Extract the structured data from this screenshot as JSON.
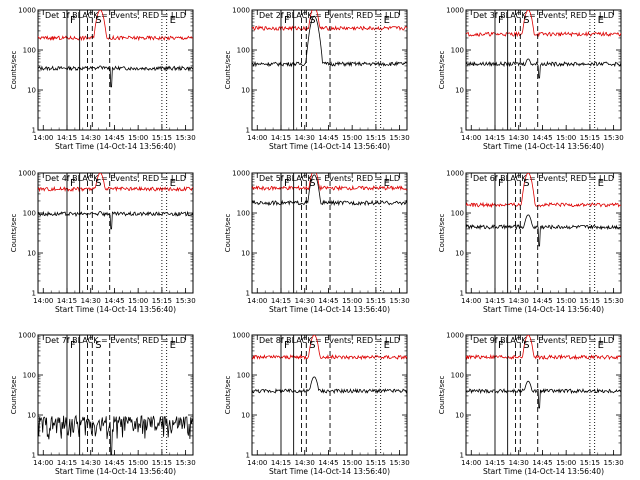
{
  "colors": {
    "events": "#000000",
    "lld": "#dd0000",
    "axes": "#000000"
  },
  "chart_data": [
    {
      "type": "line",
      "title": "Det 1f BLACK = Events, RED = LLD",
      "xlabel": "Start Time (14-Oct-14 13:56:40)",
      "ylabel": "Counts/sec",
      "y_scale": "log",
      "ylim": [
        1,
        1000
      ],
      "x_ticks": [
        "14:00",
        "14:15",
        "14:30",
        "14:45",
        "15:00",
        "15:15",
        "15:30"
      ],
      "y_ticks": [
        "1",
        "10",
        "100",
        "1000"
      ],
      "markers": [
        {
          "time": "14:15",
          "label": "F",
          "style": "solid"
        },
        {
          "time": "14:23",
          "label": "",
          "style": "solid"
        },
        {
          "time": "14:28",
          "label": "",
          "style": "dashed"
        },
        {
          "time": "14:31",
          "label": "S",
          "style": "dashed"
        },
        {
          "time": "14:42",
          "label": "",
          "style": "dashed"
        },
        {
          "time": "15:15",
          "label": "",
          "style": "dotted"
        },
        {
          "time": "15:18",
          "label": "E",
          "style": "dotted"
        }
      ],
      "series": [
        {
          "name": "Events",
          "color": "#000000",
          "baseline": 35,
          "peak_time": "14:36",
          "peak_value": 40,
          "dip_time": "14:43",
          "dip_value": 12
        },
        {
          "name": "LLD",
          "color": "#dd0000",
          "baseline": 200,
          "peak_time": "14:36",
          "peak_value": 1000,
          "dip_time": "",
          "dip_value": 0
        }
      ]
    },
    {
      "type": "line",
      "title": "Det 2f BLACK = Events, RED = LLD",
      "xlabel": "Start Time (14-Oct-14 13:56:40)",
      "ylabel": "Counts/sec",
      "y_scale": "log",
      "ylim": [
        1,
        1000
      ],
      "x_ticks": [
        "14:00",
        "14:15",
        "14:30",
        "14:45",
        "15:00",
        "15:15",
        "15:30"
      ],
      "y_ticks": [
        "1",
        "10",
        "100",
        "1000"
      ],
      "markers": [
        {
          "time": "14:15",
          "label": "F",
          "style": "solid"
        },
        {
          "time": "14:23",
          "label": "",
          "style": "solid"
        },
        {
          "time": "14:28",
          "label": "",
          "style": "dashed"
        },
        {
          "time": "14:31",
          "label": "S",
          "style": "dashed"
        },
        {
          "time": "14:46",
          "label": "",
          "style": "dashed"
        },
        {
          "time": "15:15",
          "label": "",
          "style": "dotted"
        },
        {
          "time": "15:18",
          "label": "E",
          "style": "dotted"
        }
      ],
      "series": [
        {
          "name": "Events",
          "color": "#000000",
          "baseline": 45,
          "peak_time": "14:36",
          "peak_value": 700,
          "dip_time": "",
          "dip_value": 0
        },
        {
          "name": "LLD",
          "color": "#dd0000",
          "baseline": 350,
          "peak_time": "14:36",
          "peak_value": 1200,
          "dip_time": "",
          "dip_value": 0
        }
      ]
    },
    {
      "type": "line",
      "title": "Det 3f BLACK = Events, RED = LLD",
      "xlabel": "Start Time (14-Oct-14 13:56:40)",
      "ylabel": "Counts/sec",
      "y_scale": "log",
      "ylim": [
        1,
        1000
      ],
      "x_ticks": [
        "14:00",
        "14:15",
        "14:30",
        "14:45",
        "15:00",
        "15:15",
        "15:30"
      ],
      "y_ticks": [
        "1",
        "10",
        "100",
        "1000"
      ],
      "markers": [
        {
          "time": "14:15",
          "label": "F",
          "style": "solid"
        },
        {
          "time": "14:23",
          "label": "",
          "style": "solid"
        },
        {
          "time": "14:28",
          "label": "",
          "style": "dashed"
        },
        {
          "time": "14:31",
          "label": "S",
          "style": "dashed"
        },
        {
          "time": "14:42",
          "label": "",
          "style": "dashed"
        },
        {
          "time": "15:15",
          "label": "",
          "style": "dotted"
        },
        {
          "time": "15:18",
          "label": "E",
          "style": "dotted"
        }
      ],
      "series": [
        {
          "name": "Events",
          "color": "#000000",
          "baseline": 45,
          "peak_time": "14:36",
          "peak_value": 60,
          "dip_time": "14:43",
          "dip_value": 20
        },
        {
          "name": "LLD",
          "color": "#dd0000",
          "baseline": 250,
          "peak_time": "14:36",
          "peak_value": 1000,
          "dip_time": "",
          "dip_value": 0
        }
      ]
    },
    {
      "type": "line",
      "title": "Det 4f BLACK = Events, RED = LLD",
      "xlabel": "Start Time (14-Oct-14 13:56:40)",
      "ylabel": "Counts/sec",
      "y_scale": "log",
      "ylim": [
        1,
        1000
      ],
      "x_ticks": [
        "14:00",
        "14:15",
        "14:30",
        "14:45",
        "15:00",
        "15:15",
        "15:30"
      ],
      "y_ticks": [
        "1",
        "10",
        "100",
        "1000"
      ],
      "markers": [
        {
          "time": "14:15",
          "label": "F",
          "style": "solid"
        },
        {
          "time": "14:23",
          "label": "",
          "style": "solid"
        },
        {
          "time": "14:28",
          "label": "",
          "style": "dashed"
        },
        {
          "time": "14:31",
          "label": "S",
          "style": "dashed"
        },
        {
          "time": "14:42",
          "label": "",
          "style": "dashed"
        },
        {
          "time": "15:15",
          "label": "",
          "style": "dotted"
        },
        {
          "time": "15:18",
          "label": "E",
          "style": "dotted"
        }
      ],
      "series": [
        {
          "name": "Events",
          "color": "#000000",
          "baseline": 95,
          "peak_time": "14:36",
          "peak_value": 110,
          "dip_time": "14:43",
          "dip_value": 40
        },
        {
          "name": "LLD",
          "color": "#dd0000",
          "baseline": 400,
          "peak_time": "14:36",
          "peak_value": 1000,
          "dip_time": "",
          "dip_value": 0
        }
      ]
    },
    {
      "type": "line",
      "title": "Det 5f BLACK = Events, RED = LLD",
      "xlabel": "Start Time (14-Oct-14 13:56:40)",
      "ylabel": "Counts/sec",
      "y_scale": "log",
      "ylim": [
        1,
        1000
      ],
      "x_ticks": [
        "14:00",
        "14:15",
        "14:30",
        "14:45",
        "15:00",
        "15:15",
        "15:30"
      ],
      "y_ticks": [
        "1",
        "10",
        "100",
        "1000"
      ],
      "markers": [
        {
          "time": "14:15",
          "label": "F",
          "style": "solid"
        },
        {
          "time": "14:23",
          "label": "",
          "style": "solid"
        },
        {
          "time": "14:28",
          "label": "",
          "style": "dashed"
        },
        {
          "time": "14:31",
          "label": "S",
          "style": "dashed"
        },
        {
          "time": "14:46",
          "label": "",
          "style": "dashed"
        },
        {
          "time": "15:15",
          "label": "",
          "style": "dotted"
        },
        {
          "time": "15:18",
          "label": "E",
          "style": "dotted"
        }
      ],
      "series": [
        {
          "name": "Events",
          "color": "#000000",
          "baseline": 180,
          "peak_time": "14:36",
          "peak_value": 900,
          "dip_time": "",
          "dip_value": 0
        },
        {
          "name": "LLD",
          "color": "#dd0000",
          "baseline": 420,
          "peak_time": "14:36",
          "peak_value": 1200,
          "dip_time": "",
          "dip_value": 0
        }
      ]
    },
    {
      "type": "line",
      "title": "Det 6f BLACK = Events, RED = LLD",
      "xlabel": "Start Time (14-Oct-14 13:56:40)",
      "ylabel": "Counts/sec",
      "y_scale": "log",
      "ylim": [
        1,
        1000
      ],
      "x_ticks": [
        "14:00",
        "14:15",
        "14:30",
        "14:45",
        "15:00",
        "15:15",
        "15:30"
      ],
      "y_ticks": [
        "1",
        "10",
        "100",
        "1000"
      ],
      "markers": [
        {
          "time": "14:15",
          "label": "F",
          "style": "solid"
        },
        {
          "time": "14:23",
          "label": "",
          "style": "solid"
        },
        {
          "time": "14:28",
          "label": "",
          "style": "dashed"
        },
        {
          "time": "14:31",
          "label": "S",
          "style": "dashed"
        },
        {
          "time": "14:42",
          "label": "",
          "style": "dashed"
        },
        {
          "time": "15:15",
          "label": "",
          "style": "dotted"
        },
        {
          "time": "15:18",
          "label": "E",
          "style": "dotted"
        }
      ],
      "series": [
        {
          "name": "Events",
          "color": "#000000",
          "baseline": 45,
          "peak_time": "14:36",
          "peak_value": 90,
          "dip_time": "14:43",
          "dip_value": 15
        },
        {
          "name": "LLD",
          "color": "#dd0000",
          "baseline": 160,
          "peak_time": "14:36",
          "peak_value": 1000,
          "dip_time": "",
          "dip_value": 0
        }
      ]
    },
    {
      "type": "line",
      "title": "Det 7f BLACK = Events, RED = LLD",
      "xlabel": "Start Time (14-Oct-14 13:56:40)",
      "ylabel": "Counts/sec",
      "y_scale": "log",
      "ylim": [
        1,
        1000
      ],
      "x_ticks": [
        "14:00",
        "14:15",
        "14:30",
        "14:45",
        "15:00",
        "15:15",
        "15:30"
      ],
      "y_ticks": [
        "1",
        "10",
        "100",
        "1000"
      ],
      "markers": [
        {
          "time": "14:15",
          "label": "F",
          "style": "solid"
        },
        {
          "time": "14:23",
          "label": "",
          "style": "solid"
        },
        {
          "time": "14:28",
          "label": "",
          "style": "dashed"
        },
        {
          "time": "14:31",
          "label": "S",
          "style": "dashed"
        },
        {
          "time": "14:42",
          "label": "",
          "style": "dashed"
        },
        {
          "time": "15:15",
          "label": "",
          "style": "dotted"
        },
        {
          "time": "15:18",
          "label": "E",
          "style": "dotted"
        }
      ],
      "series": [
        {
          "name": "Events",
          "color": "#000000",
          "baseline": 6,
          "peak_time": "",
          "peak_value": 0,
          "dip_time": "14:43",
          "dip_value": 1,
          "noisy": true
        }
      ]
    },
    {
      "type": "line",
      "title": "Det 8f BLACK = Events, RED = LLD",
      "xlabel": "Start Time (14-Oct-14 13:56:40)",
      "ylabel": "Counts/sec",
      "y_scale": "log",
      "ylim": [
        1,
        1000
      ],
      "x_ticks": [
        "14:00",
        "14:15",
        "14:30",
        "14:45",
        "15:00",
        "15:15",
        "15:30"
      ],
      "y_ticks": [
        "1",
        "10",
        "100",
        "1000"
      ],
      "markers": [
        {
          "time": "14:15",
          "label": "F",
          "style": "solid"
        },
        {
          "time": "14:23",
          "label": "",
          "style": "solid"
        },
        {
          "time": "14:28",
          "label": "",
          "style": "dashed"
        },
        {
          "time": "14:31",
          "label": "S",
          "style": "dashed"
        },
        {
          "time": "14:46",
          "label": "",
          "style": "dashed"
        },
        {
          "time": "15:15",
          "label": "",
          "style": "dotted"
        },
        {
          "time": "15:18",
          "label": "E",
          "style": "dotted"
        }
      ],
      "series": [
        {
          "name": "Events",
          "color": "#000000",
          "baseline": 40,
          "peak_time": "14:36",
          "peak_value": 90,
          "dip_time": "",
          "dip_value": 0
        },
        {
          "name": "LLD",
          "color": "#dd0000",
          "baseline": 280,
          "peak_time": "14:36",
          "peak_value": 1000,
          "dip_time": "",
          "dip_value": 0
        }
      ]
    },
    {
      "type": "line",
      "title": "Det 9f BLACK = Events, RED = LLD",
      "xlabel": "Start Time (14-Oct-14 13:56:40)",
      "ylabel": "Counts/sec",
      "y_scale": "log",
      "ylim": [
        1,
        1000
      ],
      "x_ticks": [
        "14:00",
        "14:15",
        "14:30",
        "14:45",
        "15:00",
        "15:15",
        "15:30"
      ],
      "y_ticks": [
        "1",
        "10",
        "100",
        "1000"
      ],
      "markers": [
        {
          "time": "14:15",
          "label": "F",
          "style": "solid"
        },
        {
          "time": "14:23",
          "label": "",
          "style": "solid"
        },
        {
          "time": "14:28",
          "label": "",
          "style": "dashed"
        },
        {
          "time": "14:31",
          "label": "S",
          "style": "dashed"
        },
        {
          "time": "14:42",
          "label": "",
          "style": "dashed"
        },
        {
          "time": "15:15",
          "label": "",
          "style": "dotted"
        },
        {
          "time": "15:18",
          "label": "E",
          "style": "dotted"
        }
      ],
      "series": [
        {
          "name": "Events",
          "color": "#000000",
          "baseline": 40,
          "peak_time": "14:36",
          "peak_value": 70,
          "dip_time": "14:43",
          "dip_value": 15
        },
        {
          "name": "LLD",
          "color": "#dd0000",
          "baseline": 280,
          "peak_time": "14:36",
          "peak_value": 1000,
          "dip_time": "",
          "dip_value": 0
        }
      ]
    }
  ]
}
